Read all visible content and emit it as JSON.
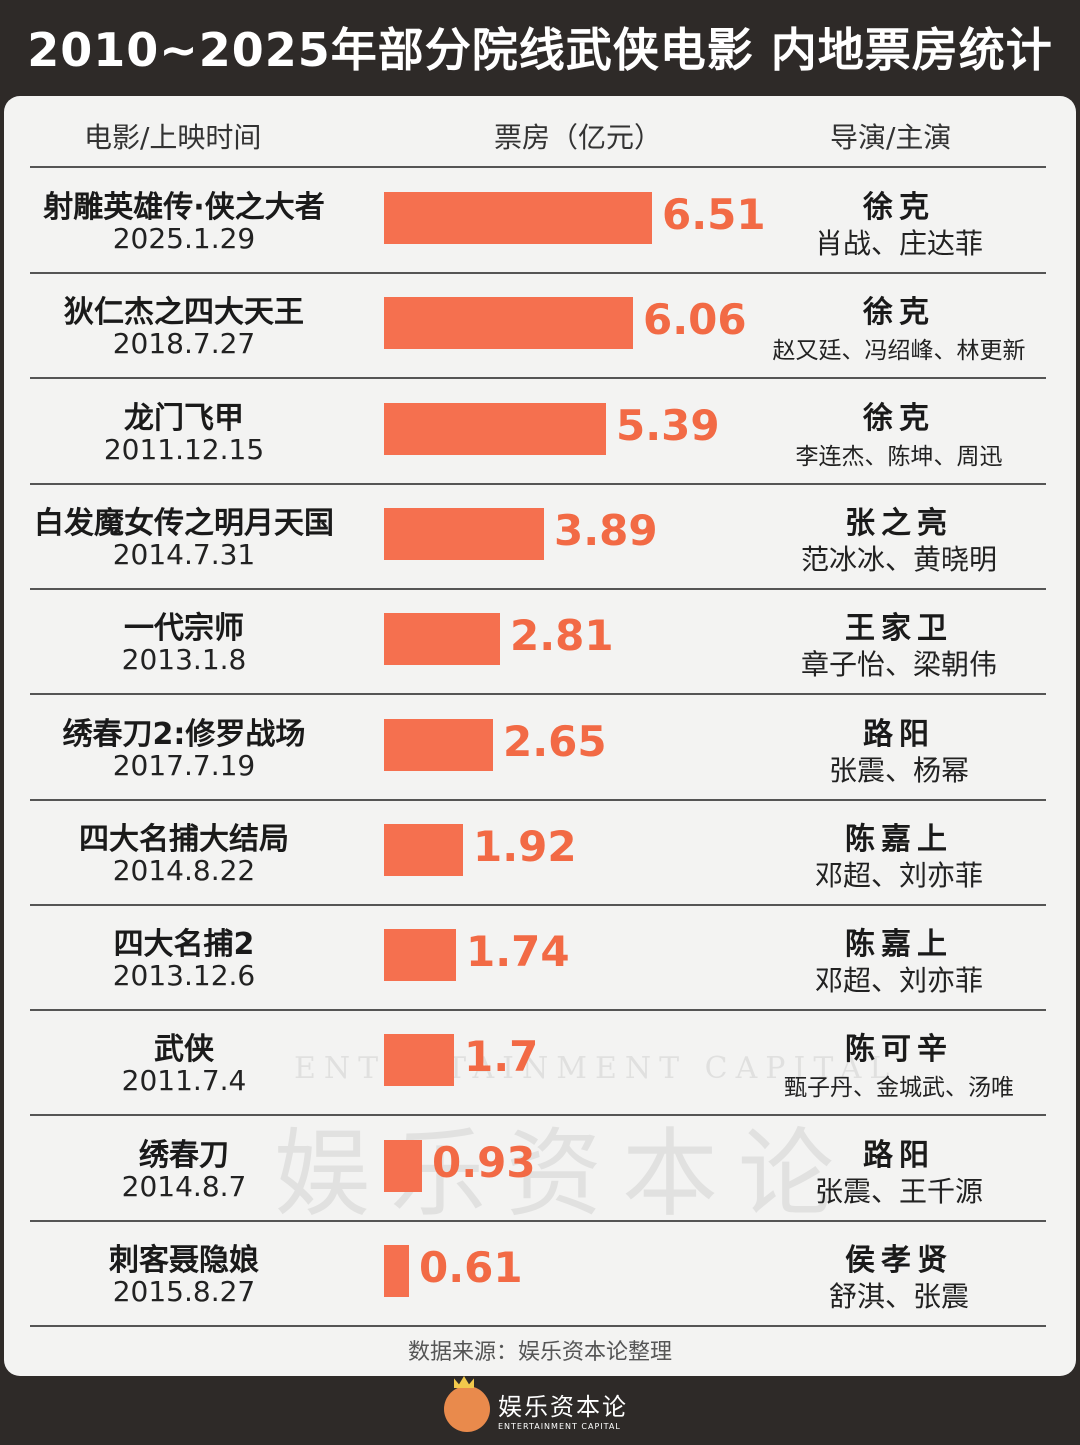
{
  "title": "2010~2025年部分院线武侠电影 内地票房统计",
  "header": {
    "col1": "电影/上映时间",
    "col2": "票房（亿元）",
    "col3": "导演/主演"
  },
  "rows": [
    {
      "movie": "射雕英雄传·侠之大者",
      "date": "2025.1.29",
      "value": "6.51",
      "director": "徐克",
      "cast": "肖战、庄达菲"
    },
    {
      "movie": "狄仁杰之四大天王",
      "date": "2018.7.27",
      "value": "6.06",
      "director": "徐克",
      "cast": "赵又廷、冯绍峰、林更新"
    },
    {
      "movie": "龙门飞甲",
      "date": "2011.12.15",
      "value": "5.39",
      "director": "徐克",
      "cast": "李连杰、陈坤、周迅"
    },
    {
      "movie": "白发魔女传之明月天国",
      "date": "2014.7.31",
      "value": "3.89",
      "director": "张之亮",
      "cast": "范冰冰、黄晓明"
    },
    {
      "movie": "一代宗师",
      "date": "2013.1.8",
      "value": "2.81",
      "director": "王家卫",
      "cast": "章子怡、梁朝伟"
    },
    {
      "movie": "绣春刀2:修罗战场",
      "date": "2017.7.19",
      "value": "2.65",
      "director": "路阳",
      "cast": "张震、杨幂"
    },
    {
      "movie": "四大名捕大结局",
      "date": "2014.8.22",
      "value": "1.92",
      "director": "陈嘉上",
      "cast": "邓超、刘亦菲"
    },
    {
      "movie": "四大名捕2",
      "date": "2013.12.6",
      "value": "1.74",
      "director": "陈嘉上",
      "cast": "邓超、刘亦菲"
    },
    {
      "movie": "武侠",
      "date": "2011.7.4",
      "value": "1.7",
      "director": "陈可辛",
      "cast": "甄子丹、金城武、汤唯"
    },
    {
      "movie": "绣春刀",
      "date": "2014.8.7",
      "value": "0.93",
      "director": "路阳",
      "cast": "张震、王千源"
    },
    {
      "movie": "刺客聂隐娘",
      "date": "2015.8.27",
      "value": "0.61",
      "director": "侯孝贤",
      "cast": "舒淇、张震"
    }
  ],
  "source": "数据来源：娱乐资本论整理",
  "watermark": {
    "cn": "娱乐资本论",
    "en": "ENTERTAINMENT CAPITAL"
  },
  "logo": {
    "cn": "娱乐资本论",
    "en": "ENTERTAINMENT CAPITAL"
  },
  "colors": {
    "bar": "#f5704f",
    "value": "#f26a45",
    "background": "#2e2a28",
    "card": "#f3f3f2"
  },
  "chart_data": {
    "type": "bar",
    "orientation": "horizontal",
    "title": "2010~2025年部分院线武侠电影 内地票房统计",
    "xlabel": "票房（亿元）",
    "categories": [
      "射雕英雄传·侠之大者",
      "狄仁杰之四大天王",
      "龙门飞甲",
      "白发魔女传之明月天国",
      "一代宗师",
      "绣春刀2:修罗战场",
      "四大名捕大结局",
      "四大名捕2",
      "武侠",
      "绣春刀",
      "刺客聂隐娘"
    ],
    "values": [
      6.51,
      6.06,
      5.39,
      3.89,
      2.81,
      2.65,
      1.92,
      1.74,
      1.7,
      0.93,
      0.61
    ],
    "grid": false,
    "legend": "none"
  }
}
